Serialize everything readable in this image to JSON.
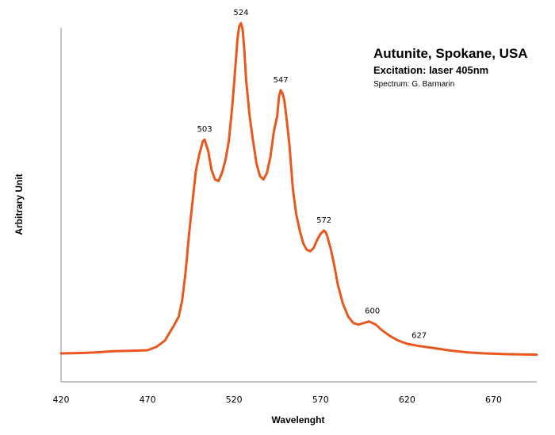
{
  "chart_data": {
    "type": "line",
    "title": "Autunite, Spokane, USA",
    "subtitle": "Excitation: laser 405nm",
    "credit": "Spectrum: G. Barmarin",
    "xlabel": "Wavelenght",
    "ylabel": "Arbitrary Unit",
    "xlim": [
      420,
      695
    ],
    "ylim": [
      0,
      100
    ],
    "x_ticks": [
      420,
      470,
      520,
      570,
      620,
      670
    ],
    "grid": false,
    "line_color": "#e8581e",
    "series": [
      {
        "x": [
          420,
          430,
          440,
          450,
          460,
          470,
          475,
          480,
          485,
          488,
          490,
          492,
          494,
          496,
          498,
          500,
          502,
          503,
          505,
          507,
          509,
          511,
          513,
          515,
          517,
          519,
          521,
          522,
          523,
          524,
          525,
          526,
          527,
          529,
          531,
          533,
          535,
          537,
          539,
          541,
          543,
          545,
          546,
          547,
          548,
          549,
          550,
          552,
          554,
          556,
          558,
          560,
          562,
          564,
          566,
          568,
          570,
          572,
          573,
          574,
          576,
          578,
          580,
          583,
          586,
          589,
          592,
          595,
          598,
          600,
          602,
          605,
          610,
          615,
          620,
          627,
          635,
          645,
          655,
          665,
          675,
          685,
          695
        ],
        "y": [
          0.5,
          0.6,
          0.8,
          1.2,
          1.3,
          1.5,
          2.5,
          4.5,
          9,
          12,
          17,
          26,
          38,
          48,
          58,
          63,
          67,
          67.5,
          64,
          58,
          55,
          54.5,
          57,
          61,
          67,
          78,
          92,
          99,
          103,
          104,
          102,
          95,
          86,
          75,
          67,
          60,
          56,
          55,
          57,
          62,
          70,
          75,
          81,
          83,
          82,
          80,
          76,
          66,
          52,
          44,
          39,
          35,
          33,
          32.5,
          33.5,
          36,
          38,
          39,
          38.5,
          37,
          33,
          28,
          22,
          16,
          12,
          10,
          9.5,
          10,
          10.5,
          10,
          9.5,
          8,
          6,
          4.5,
          3.5,
          2.8,
          2.2,
          1.4,
          0.8,
          0.5,
          0.3,
          0.2,
          0.1
        ]
      }
    ],
    "peak_labels": [
      {
        "text": "503",
        "x": 503,
        "y": 67.5
      },
      {
        "text": "524",
        "x": 524,
        "y": 104
      },
      {
        "text": "547",
        "x": 547,
        "y": 83
      },
      {
        "text": "572",
        "x": 572,
        "y": 39
      },
      {
        "text": "600",
        "x": 600,
        "y": 10.5
      },
      {
        "text": "627",
        "x": 627,
        "y": 2.8
      }
    ]
  }
}
